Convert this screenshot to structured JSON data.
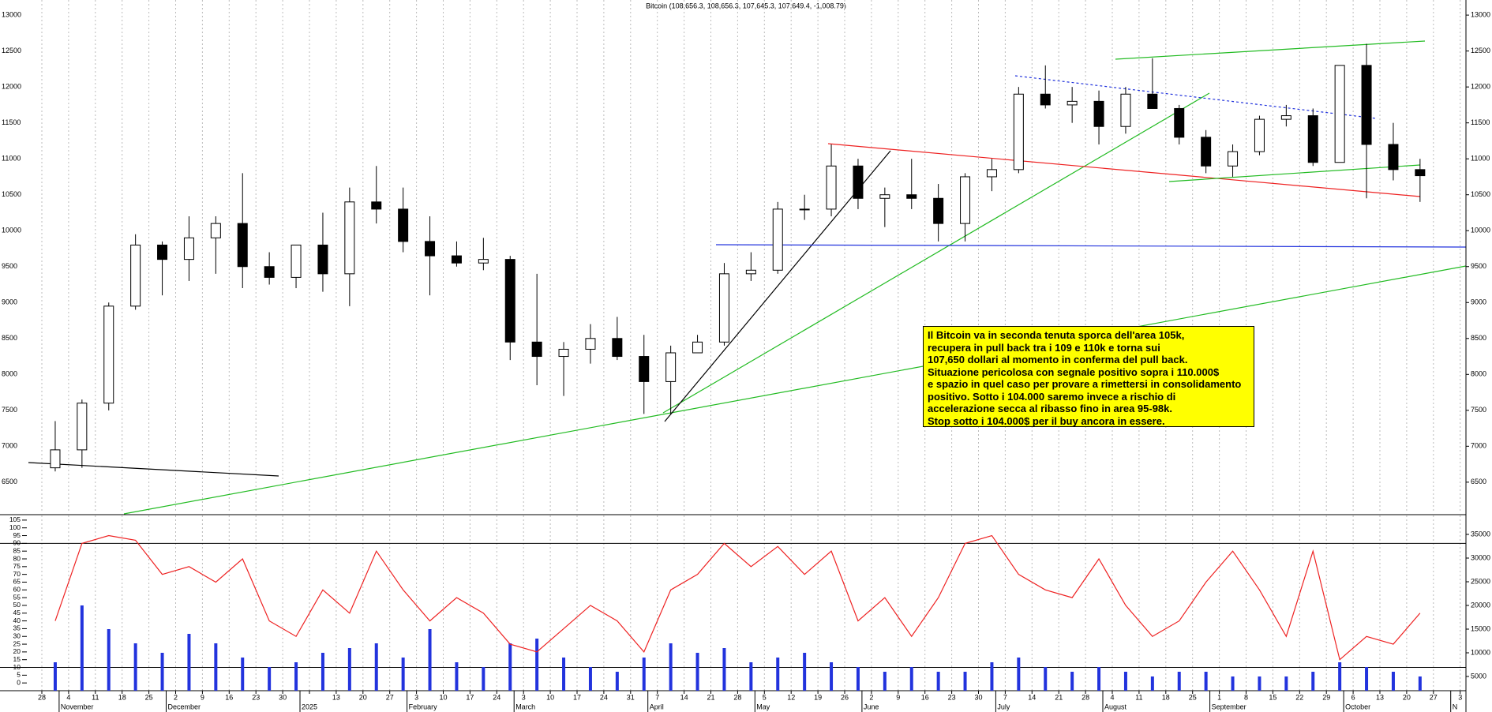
{
  "chart_data": {
    "type": "candlestick",
    "title": "Bitcoin (108,656.3, 108,656.3, 107,645.3, 107,649.4, -1,008.79)",
    "categories": [
      "28",
      "4",
      "11",
      "18",
      "25",
      "2",
      "9",
      "16",
      "23",
      "30",
      null,
      "13",
      "20",
      "27",
      "3",
      "10",
      "17",
      "24",
      "3",
      "10",
      "17",
      "24",
      "31",
      "7",
      "14",
      "21",
      "28",
      "5",
      "12",
      "19",
      "26",
      "2",
      "9",
      "16",
      "23",
      "30",
      "7",
      "14",
      "21",
      "28",
      "4",
      "11",
      "18",
      "25",
      "1",
      "8",
      "15",
      "22",
      "29",
      "6",
      "13",
      "20",
      "27",
      "3"
    ],
    "months": [
      null,
      "November",
      null,
      null,
      null,
      "December",
      null,
      null,
      null,
      null,
      "2025",
      null,
      null,
      null,
      "February",
      null,
      null,
      null,
      "March",
      null,
      null,
      null,
      null,
      "April",
      null,
      null,
      null,
      "May",
      null,
      null,
      null,
      "June",
      null,
      null,
      null,
      null,
      "July",
      null,
      null,
      null,
      "August",
      null,
      null,
      null,
      "September",
      null,
      null,
      null,
      null,
      "October",
      null,
      null,
      null,
      "N"
    ],
    "open": [
      6700,
      6950,
      7600,
      8950,
      9800,
      9600,
      9900,
      10100,
      9500,
      9350,
      9800,
      9400,
      10400,
      10300,
      9850,
      9650,
      9550,
      9600,
      8450,
      8250,
      8350,
      8500,
      8250,
      7900,
      8300,
      8450,
      9400,
      9450,
      10300,
      10300,
      10900,
      10450,
      10500,
      10450,
      10100,
      10750,
      10850,
      11900,
      11750,
      11800,
      11450,
      11900,
      11700,
      11300,
      10900,
      11100,
      11550,
      11600,
      10950,
      12300,
      11200,
      10850,
      null,
      null
    ],
    "high": [
      7350,
      7650,
      9000,
      9950,
      9850,
      10200,
      10200,
      10800,
      9700,
      9800,
      10250,
      10600,
      10900,
      10600,
      10200,
      9850,
      9900,
      9650,
      9400,
      8450,
      8700,
      8800,
      8550,
      8400,
      8550,
      9550,
      9700,
      10400,
      10500,
      11200,
      11000,
      10600,
      11000,
      10650,
      10800,
      11000,
      12000,
      12300,
      12000,
      11950,
      12000,
      12400,
      11750,
      11400,
      11200,
      11600,
      11750,
      11700,
      12300,
      12600,
      11500,
      11000,
      null,
      null
    ],
    "low": [
      6650,
      6700,
      7500,
      8900,
      9100,
      9300,
      9400,
      9200,
      9250,
      9200,
      9150,
      8950,
      10100,
      9700,
      9100,
      9500,
      9450,
      8200,
      7850,
      7700,
      8150,
      8200,
      7450,
      7450,
      8300,
      8400,
      9300,
      9400,
      10150,
      10200,
      10300,
      10050,
      10300,
      9850,
      9850,
      10550,
      10800,
      11700,
      11500,
      11200,
      11350,
      11700,
      11200,
      10800,
      10750,
      11050,
      11450,
      10900,
      10950,
      10450,
      10700,
      10400,
      null,
      null
    ],
    "close": [
      6950,
      7600,
      8950,
      9800,
      9600,
      9900,
      10100,
      9500,
      9350,
      9800,
      9400,
      10400,
      10300,
      9850,
      9650,
      9550,
      9600,
      8450,
      8250,
      8350,
      8500,
      8250,
      7900,
      8300,
      8450,
      9400,
      9450,
      10300,
      10300,
      10900,
      10450,
      10500,
      10450,
      10100,
      10750,
      10850,
      11900,
      11750,
      11800,
      11450,
      11900,
      11700,
      11300,
      10900,
      11100,
      11550,
      11600,
      10950,
      12300,
      11200,
      10850,
      10765,
      null,
      null
    ],
    "ylim": [
      6070,
      13210
    ],
    "yticks": [
      6500,
      7000,
      7500,
      8000,
      8500,
      9000,
      9500,
      10000,
      10500,
      11000,
      11500,
      12000,
      12500,
      13000
    ],
    "grid": true,
    "oscillator": {
      "name": "RSI",
      "color": "#ee2222",
      "values": [
        40,
        90,
        95,
        92,
        70,
        75,
        65,
        80,
        40,
        30,
        60,
        45,
        85,
        60,
        40,
        55,
        45,
        25,
        20,
        35,
        50,
        40,
        20,
        60,
        70,
        90,
        75,
        88,
        70,
        85,
        40,
        55,
        30,
        55,
        90,
        95,
        70,
        60,
        55,
        80,
        50,
        30,
        40,
        65,
        85,
        60,
        30,
        85,
        15,
        30,
        25,
        45,
        null,
        null
      ],
      "ylim": [
        -5,
        108
      ],
      "yticks": [
        0,
        5,
        10,
        15,
        20,
        25,
        30,
        35,
        40,
        45,
        50,
        55,
        60,
        65,
        70,
        75,
        80,
        85,
        90,
        95,
        100,
        105
      ],
      "levels": [
        90,
        10
      ]
    },
    "volume": {
      "name": "Volume",
      "color": "#2233dd",
      "values": [
        8000,
        20000,
        15000,
        12000,
        10000,
        14000,
        12000,
        9000,
        7000,
        8000,
        10000,
        11000,
        12000,
        9000,
        15000,
        8000,
        7000,
        12000,
        13000,
        9000,
        7000,
        6000,
        9000,
        12000,
        10000,
        11000,
        8000,
        9000,
        10000,
        8000,
        7000,
        6000,
        7000,
        6000,
        6000,
        8000,
        9000,
        7000,
        6000,
        7000,
        6000,
        5000,
        6000,
        6000,
        5000,
        5000,
        5000,
        6000,
        8000,
        7000,
        6000,
        5000,
        null,
        null
      ],
      "y2lim": [
        2000,
        39000
      ],
      "y2ticks": [
        5000,
        10000,
        15000,
        20000,
        25000,
        30000,
        35000
      ]
    },
    "annotation": [
      "Il Bitcoin va in seconda tenuta sporca dell'area 105k,",
      "recupera in pull back tra i 109 e 110k e torna sui",
      "107,650 dollari al momento in conferma del pull back.",
      "Situazione pericolosa con segnale positivo sopra i 110.000$",
      "e spazio in quel caso per provare a rimettersi in consolidamento",
      "positivo. Sotto i 104.000 saremo invece a rischio di",
      "accelerazione secca al ribasso fino in area 95-98k.",
      "Stop sotto i 104.000$ per il buy ancora in essere."
    ]
  }
}
